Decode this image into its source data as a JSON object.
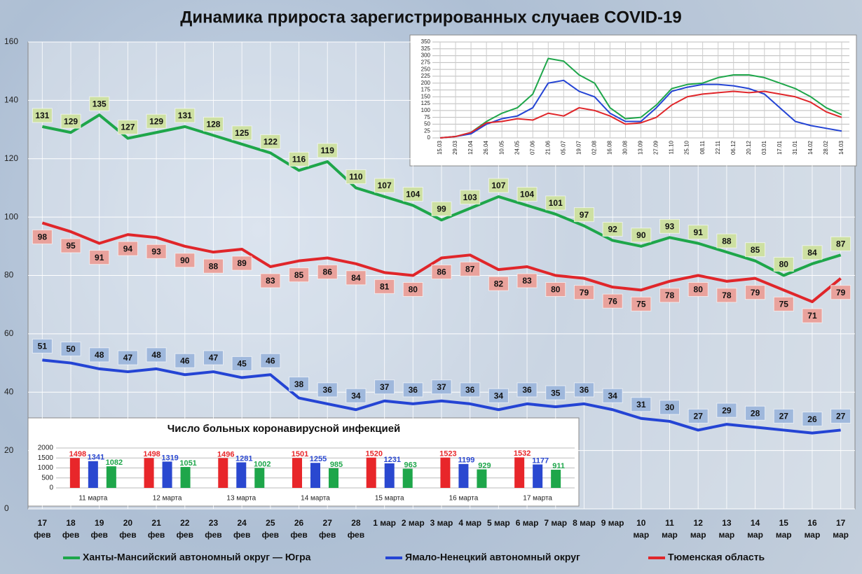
{
  "chart_data": [
    {
      "type": "line",
      "title": "Динамика прироста зарегистрированных случаев COVID-19",
      "categories": [
        "17 фев",
        "18 фев",
        "19 фев",
        "20 фев",
        "21 фев",
        "22 фев",
        "23 фев",
        "24 фев",
        "25 фев",
        "26 фев",
        "27 фев",
        "28 фев",
        "1 мар",
        "2 мар",
        "3 мар",
        "4 мар",
        "5 мар",
        "6 мар",
        "7 мар",
        "8 мар",
        "9 мар",
        "10 мар",
        "11 мар",
        "12 мар",
        "13 мар",
        "14 мар",
        "15 мар",
        "16 мар",
        "17 мар"
      ],
      "series": [
        {
          "name": "Ханты-Мансийский автономный округ — Югра",
          "color": "#1ea64a",
          "values": [
            131,
            129,
            135,
            127,
            129,
            131,
            128,
            125,
            122,
            116,
            119,
            110,
            107,
            104,
            99,
            103,
            107,
            104,
            101,
            97,
            92,
            90,
            93,
            91,
            88,
            85,
            80,
            84,
            87
          ]
        },
        {
          "name": "Ямало-Ненецкий автономный округ",
          "color": "#2444d4",
          "values": [
            51,
            50,
            48,
            47,
            48,
            46,
            47,
            45,
            46,
            38,
            36,
            34,
            37,
            36,
            37,
            36,
            34,
            36,
            35,
            36,
            34,
            31,
            30,
            27,
            29,
            28,
            27,
            26,
            27
          ]
        },
        {
          "name": "Тюменская область",
          "color": "#e0262a",
          "values": [
            98,
            95,
            91,
            94,
            93,
            90,
            88,
            89,
            83,
            85,
            86,
            84,
            81,
            80,
            86,
            87,
            82,
            83,
            80,
            79,
            76,
            75,
            78,
            80,
            78,
            79,
            75,
            71,
            79
          ]
        }
      ],
      "ylim": [
        0,
        160
      ],
      "yticks": [
        0,
        20,
        40,
        60,
        80,
        100,
        120,
        140,
        160
      ],
      "grid": true
    },
    {
      "type": "line",
      "categories": [
        "15.03",
        "29.03",
        "12.04",
        "26.04",
        "10.05",
        "24.05",
        "07.06",
        "21.06",
        "05.07",
        "19.07",
        "02.08",
        "16.08",
        "30.08",
        "13.09",
        "27.09",
        "11.10",
        "25.10",
        "08.11",
        "22.11",
        "06.12",
        "20.12",
        "03.01",
        "17.01",
        "31.01",
        "14.02",
        "28.02",
        "14.03"
      ],
      "series": [
        {
          "color": "#1ea64a",
          "values": [
            0,
            5,
            20,
            60,
            90,
            110,
            160,
            290,
            280,
            230,
            200,
            110,
            70,
            75,
            120,
            180,
            195,
            200,
            220,
            230,
            230,
            220,
            200,
            180,
            150,
            110,
            85
          ]
        },
        {
          "color": "#2444d4",
          "values": [
            0,
            5,
            15,
            50,
            70,
            80,
            110,
            200,
            210,
            170,
            150,
            90,
            60,
            60,
            110,
            170,
            185,
            195,
            195,
            190,
            180,
            160,
            110,
            60,
            45,
            35,
            25
          ]
        },
        {
          "color": "#e0262a",
          "values": [
            0,
            5,
            20,
            55,
            60,
            70,
            65,
            90,
            80,
            110,
            100,
            80,
            50,
            55,
            75,
            120,
            150,
            160,
            165,
            170,
            165,
            170,
            160,
            150,
            130,
            95,
            75
          ]
        }
      ],
      "ylim": [
        0,
        350
      ],
      "yticks": [
        0,
        25,
        50,
        75,
        100,
        125,
        150,
        175,
        200,
        225,
        250,
        275,
        300,
        325,
        350
      ],
      "grid": true
    },
    {
      "type": "bar",
      "title": "Число больных коронавирусной инфекцией",
      "categories": [
        "11 марта",
        "12 марта",
        "13 марта",
        "14 марта",
        "15 марта",
        "16 марта",
        "17 марта"
      ],
      "series": [
        {
          "color": "#e8262a",
          "values": [
            1498,
            1498,
            1496,
            1501,
            1520,
            1523,
            1532
          ]
        },
        {
          "color": "#2a48d0",
          "values": [
            1341,
            1319,
            1281,
            1255,
            1231,
            1199,
            1177
          ]
        },
        {
          "color": "#1ea64a",
          "values": [
            1082,
            1051,
            1002,
            985,
            963,
            929,
            911
          ]
        }
      ],
      "ylim": [
        0,
        2000
      ],
      "yticks": [
        0,
        500,
        1000,
        1500,
        2000
      ],
      "grid": true
    }
  ]
}
